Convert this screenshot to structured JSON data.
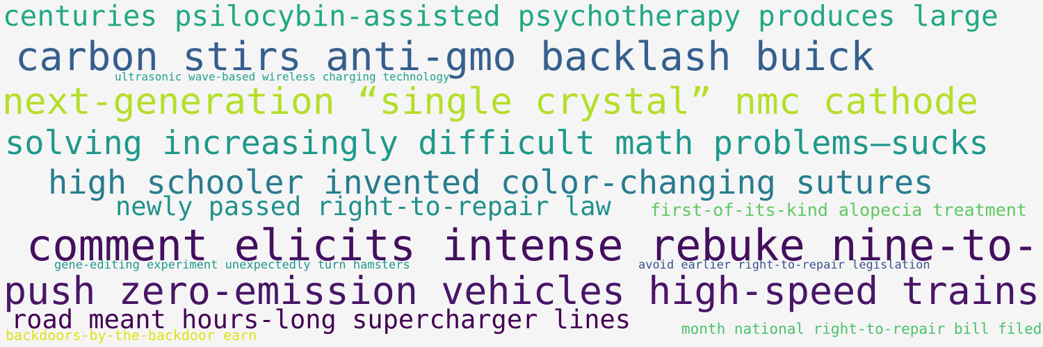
{
  "phrases": [
    {
      "text": "centuries psilocybin-assisted psychotherapy produces large",
      "color": "#22a884"
    },
    {
      "text": "carbon stirs anti-gmo backlash buick",
      "color": "#355f8d"
    },
    {
      "text": "ultrasonic wave-based wireless charging technology",
      "color": "#25a18e"
    },
    {
      "text": "next-generation “single crystal” nmc cathode",
      "color": "#b5de2b"
    },
    {
      "text": "solving increasingly difficult math problems—sucks",
      "color": "#1f998a"
    },
    {
      "text": "high schooler invented color-changing sutures",
      "color": "#287c8e"
    },
    {
      "text": "newly passed right-to-repair law",
      "color": "#21918c"
    },
    {
      "text": "first-of-its-kind alopecia treatment",
      "color": "#5ec962"
    },
    {
      "text": "comment elicits intense rebuke nine-to-",
      "color": "#440f5f"
    },
    {
      "text": "gene-editing experiment unexpectedly turn hamsters",
      "color": "#1f968b"
    },
    {
      "text": "avoid earlier right-to-repair legislation",
      "color": "#3b528b"
    },
    {
      "text": "push zero-emission vehicles high-speed trains",
      "color": "#481668"
    },
    {
      "text": "road meant hours-long supercharger lines",
      "color": "#440154"
    },
    {
      "text": "backdoors-by-the-backdoor earn",
      "color": "#dde318"
    },
    {
      "text": "month national right-to-repair bill filed",
      "color": "#4ac16d"
    }
  ]
}
